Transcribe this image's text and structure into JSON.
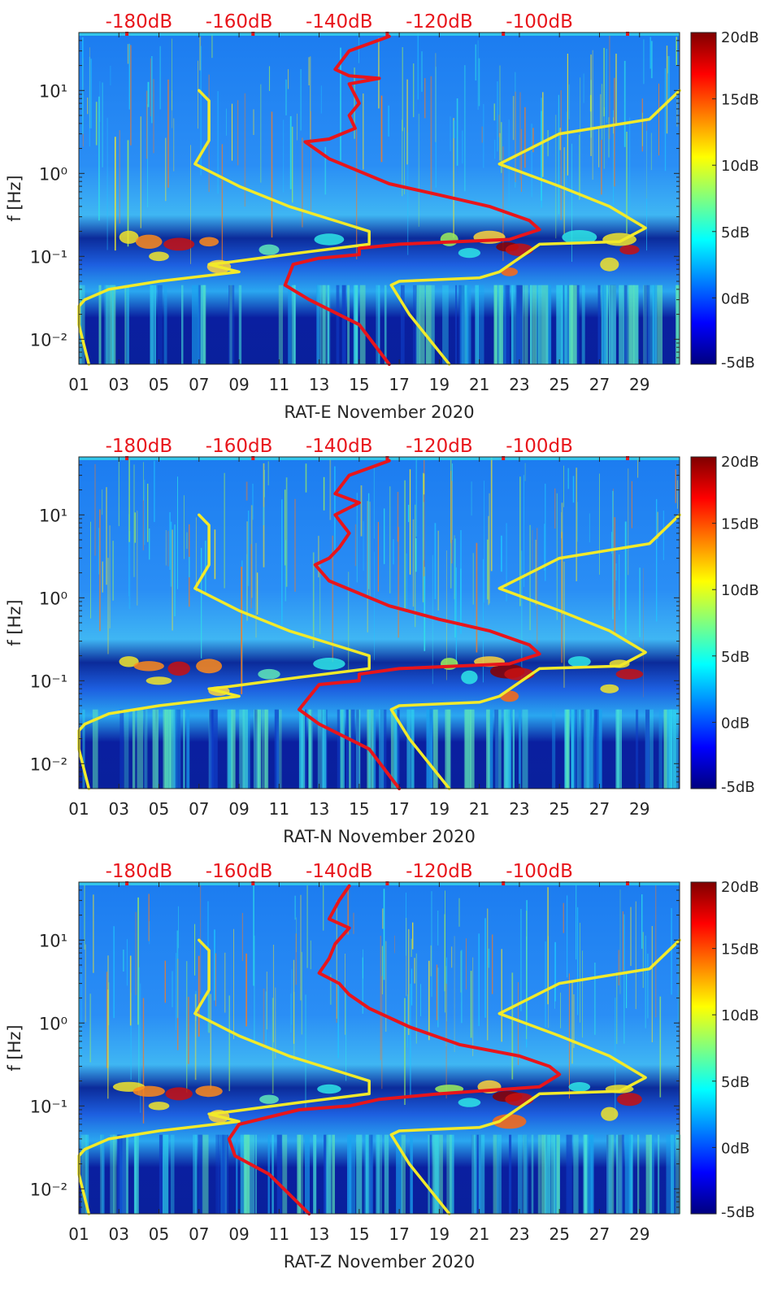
{
  "chart_data": [
    {
      "type": "heatmap",
      "xlabel": "RAT-E November 2020",
      "ylabel": "f [Hz]",
      "x_ticks": [
        "01",
        "03",
        "05",
        "07",
        "09",
        "11",
        "13",
        "15",
        "17",
        "19",
        "21",
        "23",
        "25",
        "27",
        "29"
      ],
      "x_tick_values": [
        1,
        3,
        5,
        7,
        9,
        11,
        13,
        15,
        17,
        19,
        21,
        23,
        25,
        27,
        29
      ],
      "x_range": [
        1,
        31
      ],
      "y_ticks": [
        "10¹",
        "10⁰",
        "10⁻¹",
        "10⁻²"
      ],
      "y_tick_values": [
        10,
        1,
        0.1,
        0.01
      ],
      "y_range": [
        0.005,
        50
      ],
      "top_ticks": [
        "-180dB",
        "-160dB",
        "-140dB",
        "-120dB",
        "-100dB"
      ],
      "colorbar_ticks": [
        "20dB",
        "15dB",
        "10dB",
        "5dB",
        "0dB",
        "-5dB"
      ],
      "colorbar_range": [
        -5,
        20
      ],
      "series": [
        {
          "name": "yellow-left",
          "color": "#f2ea2a",
          "points": [
            [
              7.0,
              10
            ],
            [
              7.5,
              7.5
            ],
            [
              7.5,
              2.5
            ],
            [
              6.8,
              1.3
            ],
            [
              9,
              0.7
            ],
            [
              11.5,
              0.4
            ],
            [
              14,
              0.26
            ],
            [
              15.5,
              0.2
            ],
            [
              15.5,
              0.14
            ],
            [
              12,
              0.11
            ],
            [
              8.5,
              0.085
            ],
            [
              7.5,
              0.08
            ],
            [
              9,
              0.065
            ],
            [
              5,
              0.05
            ],
            [
              2.5,
              0.04
            ],
            [
              1.3,
              0.03
            ],
            [
              1,
              0.025
            ],
            [
              1,
              0.015
            ],
            [
              1.5,
              0.005
            ]
          ]
        },
        {
          "name": "red",
          "color": "#e8151b",
          "points": [
            [
              16.5,
              45
            ],
            [
              14.5,
              30
            ],
            [
              13.8,
              18
            ],
            [
              14.5,
              15
            ],
            [
              16.0,
              14
            ],
            [
              14.5,
              12
            ],
            [
              15.0,
              7
            ],
            [
              14.5,
              5
            ],
            [
              14.8,
              3.5
            ],
            [
              13.5,
              2.6
            ],
            [
              12.3,
              2.4
            ],
            [
              13.5,
              1.5
            ],
            [
              16.5,
              0.75
            ],
            [
              19,
              0.55
            ],
            [
              21.5,
              0.4
            ],
            [
              23.5,
              0.27
            ],
            [
              24,
              0.21
            ],
            [
              22.5,
              0.16
            ],
            [
              17,
              0.14
            ],
            [
              15,
              0.125
            ],
            [
              15,
              0.105
            ],
            [
              13,
              0.095
            ],
            [
              11.7,
              0.08
            ],
            [
              11.3,
              0.045
            ],
            [
              12.5,
              0.03
            ],
            [
              15,
              0.015
            ],
            [
              16.5,
              0.005
            ]
          ]
        },
        {
          "name": "yellow-right",
          "color": "#f2ea2a",
          "points": [
            [
              31,
              10
            ],
            [
              29.5,
              4.5
            ],
            [
              25,
              3
            ],
            [
              22,
              1.3
            ],
            [
              25,
              0.7
            ],
            [
              27.5,
              0.4
            ],
            [
              29.3,
              0.22
            ],
            [
              28,
              0.15
            ],
            [
              24,
              0.14
            ],
            [
              22,
              0.065
            ],
            [
              21,
              0.055
            ],
            [
              17,
              0.05
            ],
            [
              16.6,
              0.045
            ],
            [
              17.5,
              0.02
            ],
            [
              19.5,
              0.005
            ]
          ]
        }
      ]
    },
    {
      "type": "heatmap",
      "xlabel": "RAT-N November 2020",
      "ylabel": "f [Hz]",
      "x_ticks": [
        "01",
        "03",
        "05",
        "07",
        "09",
        "11",
        "13",
        "15",
        "17",
        "19",
        "21",
        "23",
        "25",
        "27",
        "29"
      ],
      "x_tick_values": [
        1,
        3,
        5,
        7,
        9,
        11,
        13,
        15,
        17,
        19,
        21,
        23,
        25,
        27,
        29
      ],
      "x_range": [
        1,
        31
      ],
      "y_ticks": [
        "10¹",
        "10⁰",
        "10⁻¹",
        "10⁻²"
      ],
      "y_tick_values": [
        10,
        1,
        0.1,
        0.01
      ],
      "y_range": [
        0.005,
        50
      ],
      "top_ticks": [
        "-180dB",
        "-160dB",
        "-140dB",
        "-120dB",
        "-100dB"
      ],
      "colorbar_ticks": [
        "20dB",
        "15dB",
        "10dB",
        "5dB",
        "0dB",
        "-5dB"
      ],
      "colorbar_range": [
        -5,
        20
      ],
      "series": [
        {
          "name": "yellow-left",
          "color": "#f2ea2a",
          "points": [
            [
              7.0,
              10
            ],
            [
              7.5,
              7.5
            ],
            [
              7.5,
              2.5
            ],
            [
              6.8,
              1.3
            ],
            [
              9,
              0.7
            ],
            [
              11.5,
              0.4
            ],
            [
              14,
              0.26
            ],
            [
              15.5,
              0.2
            ],
            [
              15.5,
              0.14
            ],
            [
              12,
              0.11
            ],
            [
              8.5,
              0.085
            ],
            [
              7.5,
              0.08
            ],
            [
              9,
              0.065
            ],
            [
              5,
              0.05
            ],
            [
              2.5,
              0.04
            ],
            [
              1.3,
              0.03
            ],
            [
              1,
              0.025
            ],
            [
              1,
              0.015
            ],
            [
              1.5,
              0.005
            ]
          ]
        },
        {
          "name": "red",
          "color": "#e8151b",
          "points": [
            [
              16.5,
              45
            ],
            [
              14.5,
              30
            ],
            [
              13.8,
              18
            ],
            [
              15,
              14
            ],
            [
              13.8,
              10
            ],
            [
              14.5,
              6
            ],
            [
              14,
              4
            ],
            [
              13.5,
              3
            ],
            [
              12.8,
              2.5
            ],
            [
              13.5,
              1.6
            ],
            [
              16.5,
              0.8
            ],
            [
              19,
              0.55
            ],
            [
              21.5,
              0.4
            ],
            [
              23.5,
              0.27
            ],
            [
              24,
              0.21
            ],
            [
              22.5,
              0.16
            ],
            [
              17,
              0.14
            ],
            [
              15,
              0.12
            ],
            [
              15,
              0.1
            ],
            [
              13,
              0.09
            ],
            [
              12,
              0.045
            ],
            [
              13,
              0.03
            ],
            [
              15.5,
              0.015
            ],
            [
              17,
              0.005
            ]
          ]
        },
        {
          "name": "yellow-right",
          "color": "#f2ea2a",
          "points": [
            [
              31,
              10
            ],
            [
              29.5,
              4.5
            ],
            [
              25,
              3
            ],
            [
              22,
              1.3
            ],
            [
              25,
              0.7
            ],
            [
              27.5,
              0.4
            ],
            [
              29.3,
              0.22
            ],
            [
              28,
              0.15
            ],
            [
              24,
              0.14
            ],
            [
              22,
              0.065
            ],
            [
              21,
              0.055
            ],
            [
              17,
              0.05
            ],
            [
              16.6,
              0.045
            ],
            [
              17.5,
              0.02
            ],
            [
              19.5,
              0.005
            ]
          ]
        }
      ]
    },
    {
      "type": "heatmap",
      "xlabel": "RAT-Z November 2020",
      "ylabel": "f [Hz]",
      "x_ticks": [
        "01",
        "03",
        "05",
        "07",
        "09",
        "11",
        "13",
        "15",
        "17",
        "19",
        "21",
        "23",
        "25",
        "27",
        "29"
      ],
      "x_tick_values": [
        1,
        3,
        5,
        7,
        9,
        11,
        13,
        15,
        17,
        19,
        21,
        23,
        25,
        27,
        29
      ],
      "x_range": [
        1,
        31
      ],
      "y_ticks": [
        "10¹",
        "10⁰",
        "10⁻¹",
        "10⁻²"
      ],
      "y_tick_values": [
        10,
        1,
        0.1,
        0.01
      ],
      "y_range": [
        0.005,
        50
      ],
      "top_ticks": [
        "-180dB",
        "-160dB",
        "-140dB",
        "-120dB",
        "-100dB"
      ],
      "colorbar_ticks": [
        "20dB",
        "15dB",
        "10dB",
        "5dB",
        "0dB",
        "-5dB"
      ],
      "colorbar_range": [
        -5,
        20
      ],
      "series": [
        {
          "name": "yellow-left",
          "color": "#f2ea2a",
          "points": [
            [
              7.0,
              10
            ],
            [
              7.5,
              7.5
            ],
            [
              7.5,
              2.5
            ],
            [
              6.8,
              1.3
            ],
            [
              9,
              0.7
            ],
            [
              11.5,
              0.4
            ],
            [
              14,
              0.26
            ],
            [
              15.5,
              0.2
            ],
            [
              15.5,
              0.14
            ],
            [
              12,
              0.11
            ],
            [
              8.5,
              0.085
            ],
            [
              7.5,
              0.08
            ],
            [
              9,
              0.065
            ],
            [
              5,
              0.05
            ],
            [
              2.5,
              0.04
            ],
            [
              1.3,
              0.03
            ],
            [
              1,
              0.025
            ],
            [
              1,
              0.015
            ],
            [
              1.5,
              0.005
            ]
          ]
        },
        {
          "name": "red",
          "color": "#e8151b",
          "points": [
            [
              14.5,
              45
            ],
            [
              14,
              30
            ],
            [
              13.5,
              18
            ],
            [
              14.5,
              14
            ],
            [
              13.8,
              9
            ],
            [
              13.5,
              6
            ],
            [
              13,
              4
            ],
            [
              14,
              3
            ],
            [
              14.5,
              2.2
            ],
            [
              15.5,
              1.5
            ],
            [
              17.5,
              0.9
            ],
            [
              20,
              0.55
            ],
            [
              23,
              0.4
            ],
            [
              24.5,
              0.3
            ],
            [
              25,
              0.24
            ],
            [
              24,
              0.17
            ],
            [
              19,
              0.14
            ],
            [
              16,
              0.12
            ],
            [
              14.5,
              0.1
            ],
            [
              12,
              0.09
            ],
            [
              9,
              0.06
            ],
            [
              8.5,
              0.04
            ],
            [
              8.8,
              0.025
            ],
            [
              10.5,
              0.015
            ],
            [
              12.5,
              0.005
            ]
          ]
        },
        {
          "name": "yellow-right",
          "color": "#f2ea2a",
          "points": [
            [
              31,
              10
            ],
            [
              29.5,
              4.5
            ],
            [
              25,
              3
            ],
            [
              22,
              1.3
            ],
            [
              25,
              0.7
            ],
            [
              27.5,
              0.4
            ],
            [
              29.3,
              0.22
            ],
            [
              28,
              0.15
            ],
            [
              24,
              0.14
            ],
            [
              22,
              0.065
            ],
            [
              21,
              0.055
            ],
            [
              17,
              0.05
            ],
            [
              16.6,
              0.045
            ],
            [
              17.5,
              0.02
            ],
            [
              19.5,
              0.005
            ]
          ]
        }
      ]
    }
  ]
}
